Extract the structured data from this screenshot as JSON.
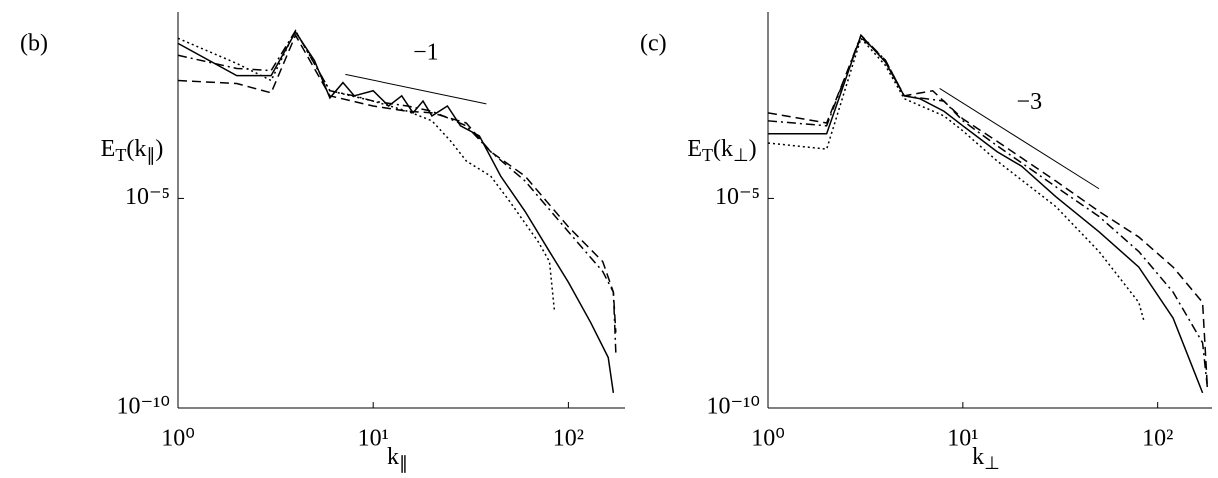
{
  "chart_data": [
    {
      "type": "line",
      "panel_label": "(b)",
      "xlabel": "k_∥",
      "ylabel": "E_T(k_∥)",
      "log_x": true,
      "log_y": true,
      "xlim": [
        1,
        195
      ],
      "ylim": [
        1e-10,
        0.28
      ],
      "xticks": [
        {
          "value": 1,
          "label": "10⁰"
        },
        {
          "value": 10,
          "label": "10¹"
        },
        {
          "value": 100,
          "label": "10²"
        }
      ],
      "yticks": [
        {
          "value": 1e-10,
          "label": "10⁻¹⁰"
        },
        {
          "value": 1e-05,
          "label": "10⁻⁵"
        }
      ],
      "slope_line": {
        "label": "−1",
        "x": [
          7.2,
          38
        ],
        "y": [
          0.0091,
          0.0018
        ]
      },
      "series": [
        {
          "color": "#000000",
          "dash": "solid",
          "x": [
            1,
            2,
            3,
            4,
            5,
            6,
            7,
            8,
            10,
            12,
            14,
            16,
            18,
            20,
            24,
            28,
            35,
            45,
            60,
            80,
            100,
            130,
            160,
            170
          ],
          "values": [
            0.05,
            0.0085,
            0.0085,
            0.093,
            0.0195,
            0.0025,
            0.0058,
            0.0028,
            0.0037,
            0.0016,
            0.0028,
            0.0011,
            0.0021,
            0.00093,
            0.0016,
            0.00054,
            0.00031,
            3.4e-05,
            4.9e-06,
            5.4e-07,
            1e-07,
            1.1e-08,
            1.6e-09,
            2.3e-10
          ]
        },
        {
          "color": "#000000",
          "dash": "dashdot",
          "x": [
            1,
            2,
            3,
            4,
            6,
            8,
            10,
            15,
            20,
            30,
            40,
            60,
            100,
            150,
            170,
            175
          ],
          "values": [
            0.026,
            0.0126,
            0.0112,
            0.1,
            0.0037,
            0.0028,
            0.0021,
            0.0016,
            0.0012,
            0.00054,
            0.00013,
            2.6e-05,
            1.6e-06,
            1.8e-07,
            5.8e-08,
            2.1e-09
          ]
        },
        {
          "color": "#000000",
          "dash": "dashed",
          "x": [
            1,
            2,
            3,
            4,
            6,
            10,
            15,
            20,
            30,
            40,
            60,
            100,
            150,
            170,
            175
          ],
          "values": [
            0.0065,
            0.0055,
            0.0033,
            0.078,
            0.0028,
            0.0016,
            0.0012,
            0.0011,
            0.00063,
            0.00013,
            3.4e-05,
            2.1e-06,
            3.1e-07,
            5.8e-08,
            6.3e-09
          ]
        },
        {
          "color": "#000000",
          "dash": "dotted",
          "x": [
            1,
            2,
            3,
            4,
            6,
            10,
            15,
            20,
            25,
            30,
            40,
            50,
            70,
            80,
            85
          ],
          "values": [
            0.066,
            0.0166,
            0.0065,
            0.1,
            0.0037,
            0.0021,
            0.0012,
            0.00071,
            0.00023,
            7.8e-05,
            3.4e-05,
            8.5e-06,
            9.3e-07,
            3.1e-07,
            1.9e-08
          ]
        }
      ]
    },
    {
      "type": "line",
      "panel_label": "(c)",
      "xlabel": "k_⊥",
      "ylabel": "E_T(k_⊥)",
      "log_x": true,
      "log_y": true,
      "xlim": [
        1,
        190
      ],
      "ylim": [
        1e-10,
        0.28
      ],
      "xticks": [
        {
          "value": 1,
          "label": "10⁰"
        },
        {
          "value": 10,
          "label": "10¹"
        },
        {
          "value": 100,
          "label": "10²"
        }
      ],
      "yticks": [
        {
          "value": 1e-10,
          "label": "10⁻¹⁰"
        },
        {
          "value": 1e-05,
          "label": "10⁻⁵"
        }
      ],
      "slope_line": {
        "label": "−3",
        "x": [
          7.6,
          50
        ],
        "y": [
          0.0042,
          1.7e-05
        ]
      },
      "series": [
        {
          "color": "#000000",
          "dash": "solid",
          "x": [
            1,
            2,
            3,
            4,
            5,
            6,
            8,
            10,
            15,
            20,
            30,
            50,
            80,
            120,
            170
          ],
          "values": [
            0.00035,
            0.00035,
            0.078,
            0.018,
            0.0028,
            0.0024,
            0.0012,
            0.00054,
            0.00013,
            5.9e-05,
            1.1e-05,
            1.6e-06,
            2.3e-07,
            1.4e-08,
            2.3e-10
          ]
        },
        {
          "color": "#000000",
          "dash": "dashed",
          "x": [
            1,
            2,
            3,
            4,
            5,
            7,
            10,
            15,
            30,
            50,
            80,
            120,
            170,
            180
          ],
          "values": [
            0.0011,
            0.00063,
            0.07,
            0.02,
            0.0028,
            0.0037,
            0.00079,
            0.00023,
            2.6e-05,
            4.9e-06,
            1.2e-06,
            2.3e-07,
            3.3e-08,
            3e-10
          ]
        },
        {
          "color": "#000000",
          "dash": "dashdot",
          "x": [
            1,
            2,
            3,
            4,
            5,
            8,
            10,
            15,
            30,
            50,
            80,
            120,
            170,
            180
          ],
          "values": [
            0.00071,
            0.00054,
            0.078,
            0.02,
            0.0028,
            0.0021,
            0.00071,
            0.00018,
            1.9e-05,
            3.7e-06,
            5.4e-07,
            5.8e-08,
            3.6e-09,
            3e-10
          ]
        },
        {
          "color": "#000000",
          "dash": "dotted",
          "x": [
            1,
            2,
            3,
            4,
            5,
            8,
            10,
            15,
            30,
            50,
            80,
            85
          ],
          "values": [
            0.00021,
            0.00015,
            0.066,
            0.015,
            0.0024,
            0.00093,
            0.00041,
            7.8e-05,
            6.4e-06,
            5.4e-07,
            3.3e-08,
            1.2e-08
          ]
        }
      ]
    }
  ]
}
